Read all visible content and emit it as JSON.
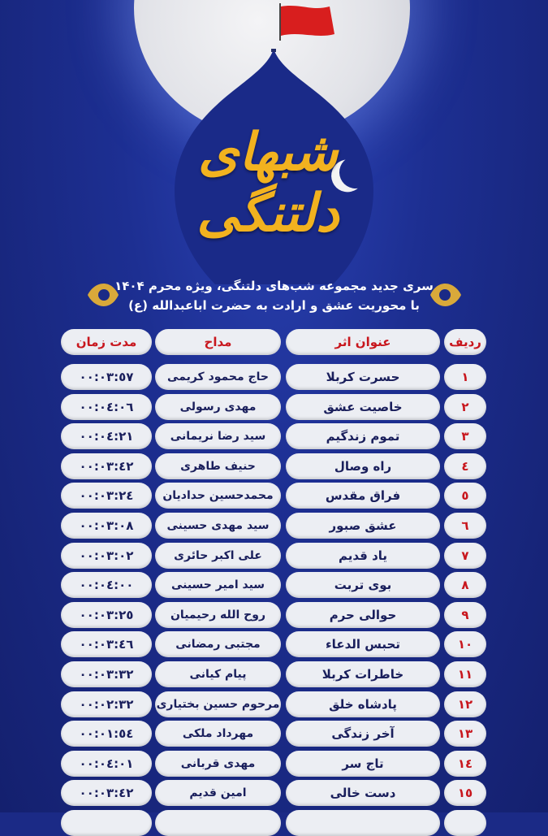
{
  "logo_text": "شبهای دلتنگی",
  "subtitle": [
    "سری جدید مجموعه شب‌های دلتنگی، ویژه محرم ۱۴۰۴",
    "با محوریت عشق و ارادت به حضرت اباعبدالله (ع)"
  ],
  "colors": {
    "background": "#1b2a86",
    "gold": "#f2b21f",
    "red": "#c8161d",
    "pill": "#eceef3",
    "text": "#1a1f5c"
  },
  "table": {
    "headers": {
      "num": "ردیف",
      "title": "عنوان اثر",
      "maddah": "مداح",
      "duration": "مدت زمان"
    },
    "rows": [
      {
        "num": "١",
        "title": "حسرت کربلا",
        "maddah": "حاج محمود کریمی",
        "duration": "٠٠:٠٣:٥٧"
      },
      {
        "num": "٢",
        "title": "خاصیت عشق",
        "maddah": "مهدی رسولی",
        "duration": "٠٠:٠٤:٠٦"
      },
      {
        "num": "٣",
        "title": "تموم زندگیم",
        "maddah": "سید رضا نریمانی",
        "duration": "٠٠:٠٤:٢١"
      },
      {
        "num": "٤",
        "title": "راه وصال",
        "maddah": "حنیف طاهری",
        "duration": "٠٠:٠٣:٤٢"
      },
      {
        "num": "٥",
        "title": "فراق مقدس",
        "maddah": "محمدحسین حدادیان",
        "duration": "٠٠:٠٣:٢٤"
      },
      {
        "num": "٦",
        "title": "عشق صبور",
        "maddah": "سید مهدی حسینی",
        "duration": "٠٠:٠٣:٠٨"
      },
      {
        "num": "٧",
        "title": "یاد قدیم",
        "maddah": "علی اکبر حائری",
        "duration": "٠٠:٠٣:٠٢"
      },
      {
        "num": "٨",
        "title": "بوی تربت",
        "maddah": "سید امیر حسینی",
        "duration": "٠٠:٠٤:٠٠"
      },
      {
        "num": "٩",
        "title": "حوالی حرم",
        "maddah": "روح الله رحیمیان",
        "duration": "٠٠:٠٣:٢٥"
      },
      {
        "num": "١٠",
        "title": "تحبس الدعاء",
        "maddah": "مجتبی رمضانی",
        "duration": "٠٠:٠٣:٤٦"
      },
      {
        "num": "١١",
        "title": "خاطرات کربلا",
        "maddah": "پیام کیانی",
        "duration": "٠٠:٠٣:٣٢"
      },
      {
        "num": "١٢",
        "title": "پادشاه خلق",
        "maddah": "مرحوم حسین بختیاری",
        "duration": "٠٠:٠٢:٣٢"
      },
      {
        "num": "١٣",
        "title": "آخر زندگی",
        "maddah": "مهرداد ملکی",
        "duration": "٠٠:٠١:٥٤"
      },
      {
        "num": "١٤",
        "title": "تاج سر",
        "maddah": "مهدی قربانی",
        "duration": "٠٠:٠٤:٠١"
      },
      {
        "num": "١٥",
        "title": "دست خالی",
        "maddah": "امین قدیم",
        "duration": "٠٠:٠٣:٤٢"
      }
    ]
  }
}
